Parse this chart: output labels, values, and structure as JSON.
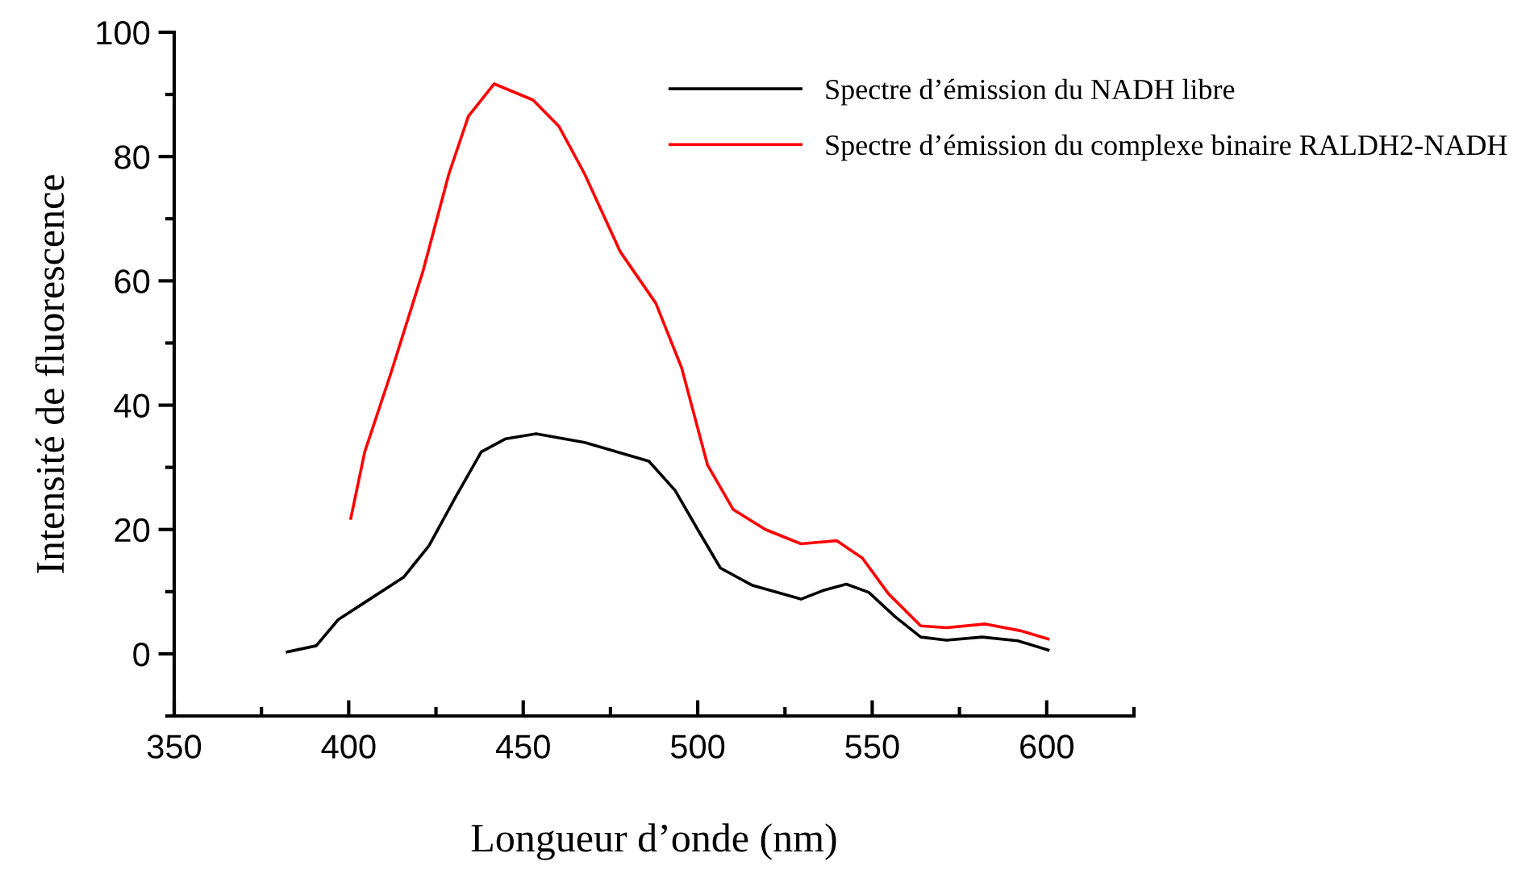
{
  "chart_data": {
    "type": "line",
    "xlabel": "Longueur d’onde (nm)",
    "ylabel": "Intensité de fluorescence",
    "xlim": [
      350,
      625
    ],
    "ylim": [
      -10,
      100
    ],
    "xticks": [
      350,
      {
        "value": 375,
        "label": null
      },
      400,
      {
        "value": 425,
        "label": null
      },
      450,
      {
        "value": 475,
        "label": null
      },
      500,
      {
        "value": 525,
        "label": null
      },
      550,
      {
        "value": 575,
        "label": null
      },
      600,
      {
        "value": 625,
        "label": null
      }
    ],
    "yticks": [
      {
        "value": -10,
        "label": null
      },
      0,
      {
        "value": 10,
        "label": null
      },
      20,
      {
        "value": 30,
        "label": null
      },
      40,
      {
        "value": 50,
        "label": null
      },
      60,
      {
        "value": 70,
        "label": null
      },
      80,
      {
        "value": 90,
        "label": null
      },
      100
    ],
    "grid": false,
    "legend": "top right",
    "marker": "none",
    "line_style": "solid",
    "series": [
      {
        "name": "Spectre d’émission du NADH libre",
        "color": "#000000",
        "x": [
          382.4,
          390.7,
          397,
          405.5,
          415.7,
          423,
          430.6,
          438,
          445,
          453.7,
          467.6,
          478.7,
          486,
          493.5,
          500,
          506.5,
          515.7,
          529.6,
          536,
          542.6,
          549,
          556.5,
          563.9,
          571.3,
          581.5,
          591.7,
          600.4
        ],
        "values": [
          0.3,
          1.3,
          5.5,
          8.6,
          12.3,
          17.4,
          25.2,
          32.5,
          34.6,
          35.4,
          34,
          32.2,
          31,
          26.3,
          20,
          13.8,
          11,
          8.8,
          10.2,
          11.2,
          9.9,
          6,
          2.7,
          2.2,
          2.7,
          2.1,
          0.6
        ]
      },
      {
        "name": "Spectre d’émission du complexe binaire RALDH2-NADH",
        "color": "#ff0000",
        "x": [
          400.6,
          404.6,
          412,
          421.3,
          428.7,
          434.3,
          441.7,
          452.8,
          460.2,
          467.6,
          477.8,
          488,
          495.4,
          502.8,
          510.2,
          519.4,
          529.6,
          539.8,
          547.2,
          554.6,
          563.9,
          571.3,
          582.4,
          592.6,
          600.4
        ],
        "values": [
          21.8,
          32.5,
          45,
          61.6,
          77.2,
          86.5,
          91.7,
          89.1,
          84.9,
          77.2,
          64.7,
          56.4,
          46,
          30.4,
          23.2,
          20,
          17.7,
          18.2,
          15.4,
          9.7,
          4.5,
          4.2,
          4.8,
          3.7,
          2.4
        ]
      }
    ]
  }
}
